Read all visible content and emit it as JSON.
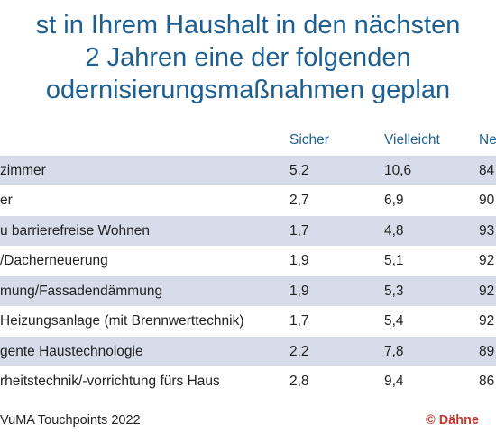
{
  "title_lines": [
    "st in Ihrem Haushalt in den nächsten",
    "2 Jahren eine der folgenden",
    "odernisierungsmaßnahmen geplan"
  ],
  "table": {
    "headers": [
      "",
      "Sicher",
      "Vielleicht",
      "Ne"
    ],
    "rows": [
      [
        "zimmer",
        "5,2",
        "10,6",
        "84"
      ],
      [
        "er",
        "2,7",
        "6,9",
        "90"
      ],
      [
        "u barrierefreise Wohnen",
        "1,7",
        "4,8",
        "93"
      ],
      [
        "/Dacherneuerung",
        "1,9",
        "5,1",
        "92"
      ],
      [
        "mung/Fassadendämmung",
        "1,9",
        "5,3",
        "92"
      ],
      [
        "Heizungsanlage (mit Brennwerttechnik)",
        "1,7",
        "5,4",
        "92"
      ],
      [
        "gente Haustechnologie",
        "2,2",
        "7,8",
        "89"
      ],
      [
        "rheitstechnik/-vorrichtung fürs Haus",
        "2,8",
        "9,4",
        "86"
      ]
    ]
  },
  "footer": {
    "source": "VuMA Touchpoints 2022",
    "copyright": "© Dähne"
  }
}
